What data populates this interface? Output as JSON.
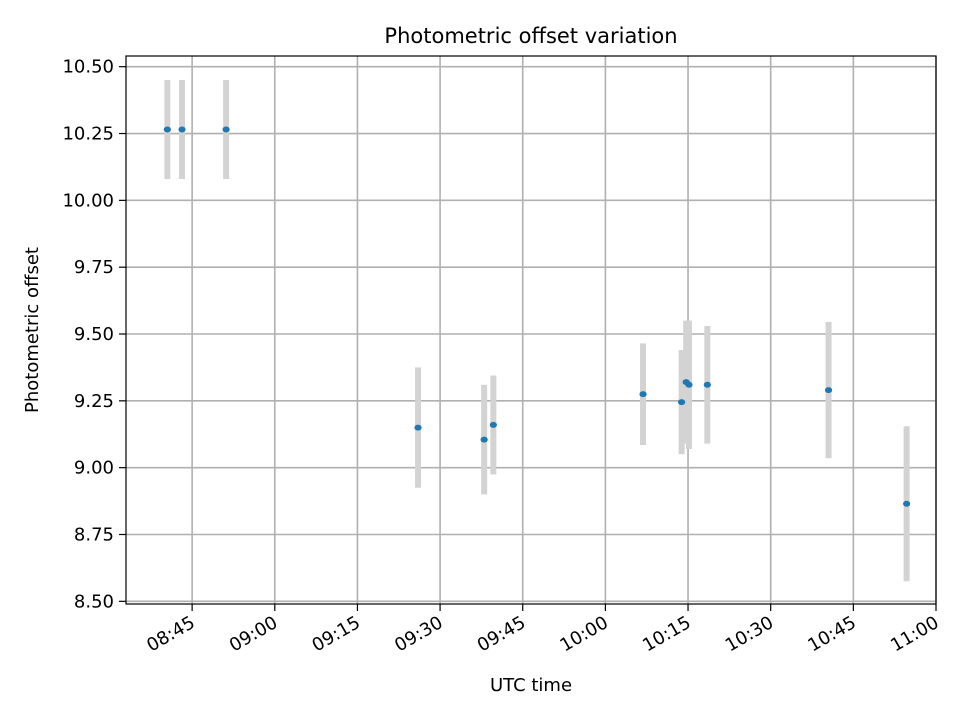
{
  "chart_data": {
    "type": "scatter",
    "title": "Photometric offset variation",
    "xlabel": "UTC time",
    "ylabel": "Photometric offset",
    "grid": true,
    "ylim": [
      8.49,
      10.54
    ],
    "xlim": [
      "08:33",
      "11:00"
    ],
    "x_ticks": [
      "08:45",
      "09:00",
      "09:15",
      "09:30",
      "09:45",
      "10:00",
      "10:15",
      "10:30",
      "10:45",
      "11:00"
    ],
    "y_ticks": [
      "8.50",
      "8.75",
      "9.00",
      "9.25",
      "9.50",
      "9.75",
      "10.00",
      "10.25",
      "10.50"
    ],
    "marker_color": "#1f77b4",
    "errorbar_color": "#d3d3d3",
    "points": [
      {
        "x": "08:40:30",
        "y": 10.265,
        "err": 0.185
      },
      {
        "x": "08:43:10",
        "y": 10.265,
        "err": 0.185
      },
      {
        "x": "08:51:10",
        "y": 10.265,
        "err": 0.185
      },
      {
        "x": "09:26:00",
        "y": 9.15,
        "err": 0.225
      },
      {
        "x": "09:38:00",
        "y": 9.105,
        "err": 0.205
      },
      {
        "x": "09:39:40",
        "y": 9.16,
        "err": 0.185
      },
      {
        "x": "10:06:50",
        "y": 9.275,
        "err": 0.19
      },
      {
        "x": "10:13:50",
        "y": 9.245,
        "err": 0.195
      },
      {
        "x": "10:14:40",
        "y": 9.32,
        "err": 0.23
      },
      {
        "x": "10:15:10",
        "y": 9.31,
        "err": 0.24
      },
      {
        "x": "10:18:30",
        "y": 9.31,
        "err": 0.22
      },
      {
        "x": "10:40:30",
        "y": 9.29,
        "err": 0.255
      },
      {
        "x": "10:54:40",
        "y": 8.865,
        "err": 0.29
      }
    ]
  }
}
